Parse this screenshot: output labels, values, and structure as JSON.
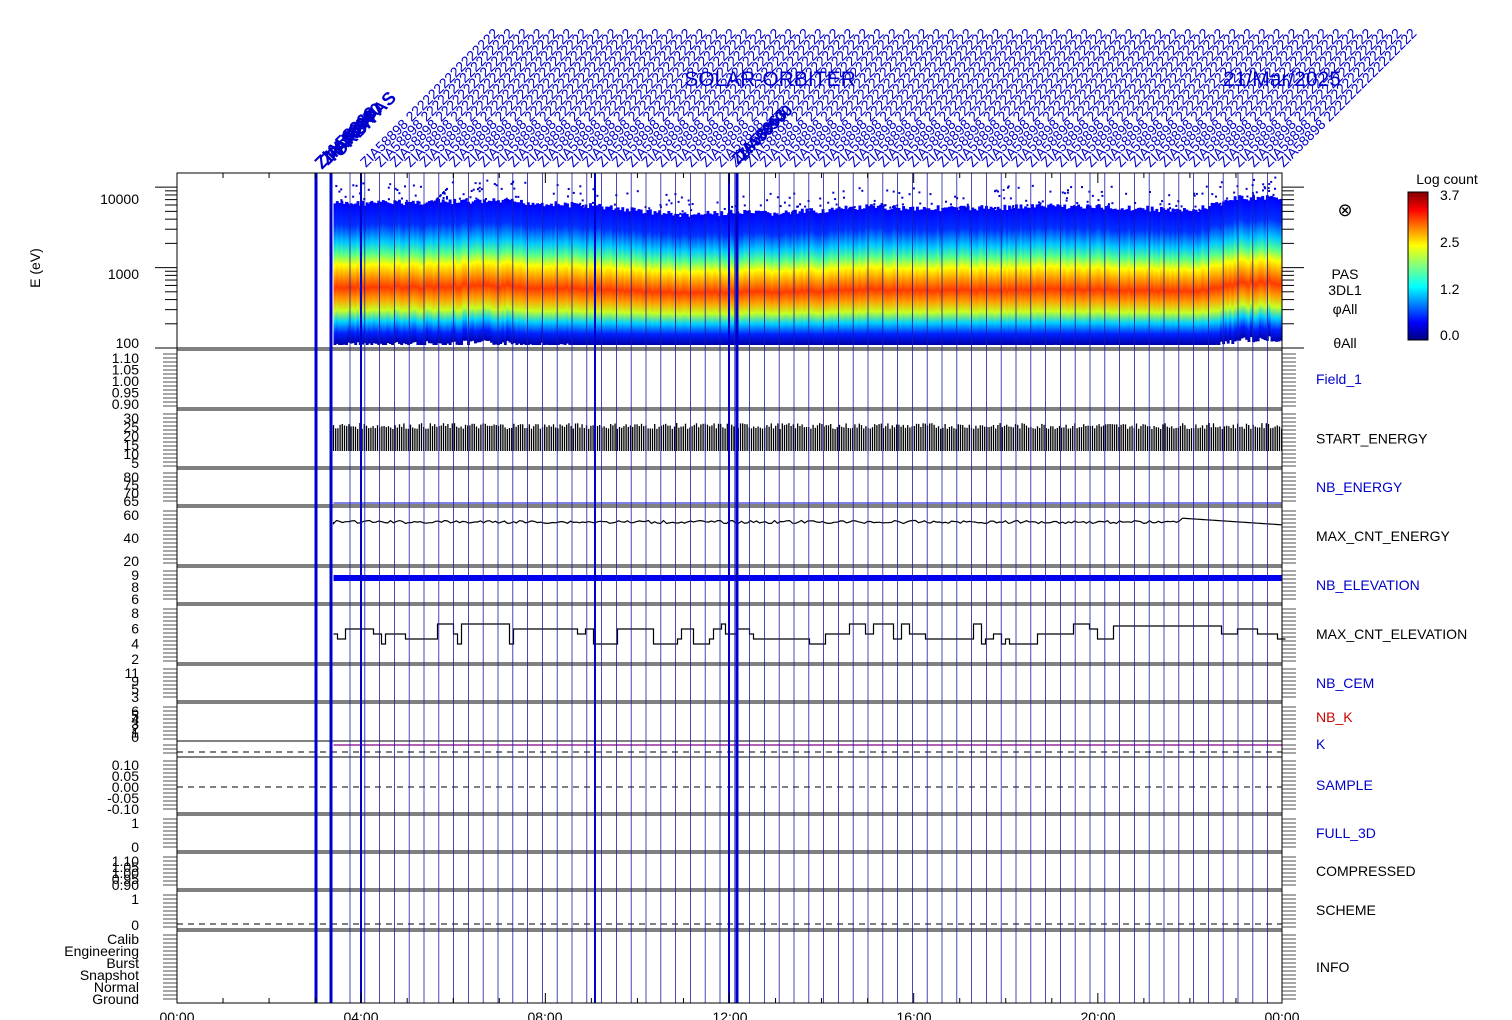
{
  "header": {
    "mission": "SOLAR-ORBITER",
    "date": "21/Mar/2025",
    "event_labels_left": [
      "ZIA58963",
      "ZIA58900",
      "PARS/PAS",
      "ORBIT"
    ],
    "event_labels_mid": [
      "ZIA58963",
      "ZIA58900"
    ],
    "event_pattern": "ZIA58898"
  },
  "spectrogram": {
    "ylabel": "E (eV)",
    "yticks": [
      "10000",
      "1000",
      "100"
    ],
    "right_labels": [
      "PAS",
      "3DL1",
      "φAll",
      "θAll"
    ],
    "symbol": "⊗",
    "colorbar": {
      "title": "Log count",
      "ticks": [
        "3.7",
        "2.5",
        "1.2",
        "0.0"
      ]
    }
  },
  "panels": [
    {
      "name": "Field_1",
      "color": "#0000cc",
      "ticks": [
        "1.10",
        "1.05",
        "1.00",
        "0.95",
        "0.90"
      ]
    },
    {
      "name": "START_ENERGY",
      "color": "#000000",
      "ticks": [
        "30",
        "25",
        "20",
        "15",
        "10",
        "5"
      ]
    },
    {
      "name": "NB_ENERGY",
      "color": "#0000cc",
      "ticks": [
        "80",
        "75",
        "70",
        "65"
      ]
    },
    {
      "name": "MAX_CNT_ENERGY",
      "color": "#000000",
      "ticks": [
        "60",
        "40",
        "20"
      ]
    },
    {
      "name": "NB_ELEVATION",
      "color": "#0000cc",
      "ticks": [
        "9",
        "8",
        "6"
      ]
    },
    {
      "name": "MAX_CNT_ELEVATION",
      "color": "#000000",
      "ticks": [
        "8",
        "6",
        "4",
        "2"
      ]
    },
    {
      "name": "NB_CEM",
      "color": "#0000cc",
      "ticks": [
        "11",
        "9",
        "5",
        "3"
      ]
    },
    {
      "name": "NB_K",
      "color": "#cc0000",
      "ticks": [
        "6",
        "5",
        "4",
        "3",
        "2",
        "1",
        "0"
      ]
    },
    {
      "name": "K",
      "color": "#0000cc",
      "ticks": []
    },
    {
      "name": "SAMPLE",
      "color": "#0000cc",
      "ticks": [
        "0.10",
        "0.05",
        "0.00",
        "-0.05",
        "-0.10"
      ]
    },
    {
      "name": "FULL_3D",
      "color": "#0000cc",
      "ticks": [
        "1",
        "0"
      ]
    },
    {
      "name": "COMPRESSED",
      "color": "#000000",
      "ticks": [
        "1.10",
        "1.05",
        "1.00",
        "0.95",
        "0.90"
      ]
    },
    {
      "name": "SCHEME",
      "color": "#000000",
      "ticks": [
        "1",
        "0"
      ]
    },
    {
      "name": "INFO",
      "color": "#000000",
      "ticks": [
        "Calib",
        "Engineering",
        "Burst",
        "Snapshot",
        "Normal",
        "Ground"
      ]
    }
  ],
  "xaxis": {
    "ticks": [
      "00:00",
      "04:00",
      "08:00",
      "12:00",
      "16:00",
      "20:00",
      "00:00"
    ]
  },
  "chart_data": {
    "type": "heatmap",
    "title": "SOLAR-ORBITER 21/Mar/2025",
    "x_range_hours": [
      0,
      24
    ],
    "data_start_hour": 3.4,
    "spectrogram": {
      "ylabel": "E (eV)",
      "log_y": true,
      "ylim": [
        100,
        15000
      ],
      "peak_energy_ev": [
        [
          3.4,
          600
        ],
        [
          5,
          620
        ],
        [
          7,
          640
        ],
        [
          9,
          560
        ],
        [
          11,
          430
        ],
        [
          12,
          460
        ],
        [
          13,
          450
        ],
        [
          15,
          540
        ],
        [
          17,
          520
        ],
        [
          19,
          560
        ],
        [
          21,
          520
        ],
        [
          22,
          480
        ],
        [
          23,
          700
        ],
        [
          24,
          720
        ]
      ],
      "clim": [
        0.0,
        3.7
      ],
      "colorbar_label": "Log count"
    },
    "series": [
      {
        "name": "START_ENERGY",
        "ylim": [
          0,
          30
        ],
        "approx_value": [
          10,
          22
        ]
      },
      {
        "name": "MAX_CNT_ENERGY",
        "ylim": [
          0,
          80
        ],
        "approx_value": 60
      },
      {
        "name": "NB_ELEVATION",
        "ylim": [
          5,
          10
        ],
        "approx_value": 9
      },
      {
        "name": "MAX_CNT_ELEVATION",
        "ylim": [
          0,
          9
        ],
        "approx_value": 4
      },
      {
        "name": "K",
        "ylim": [
          0,
          7
        ],
        "approx_value": 0.6
      }
    ]
  }
}
